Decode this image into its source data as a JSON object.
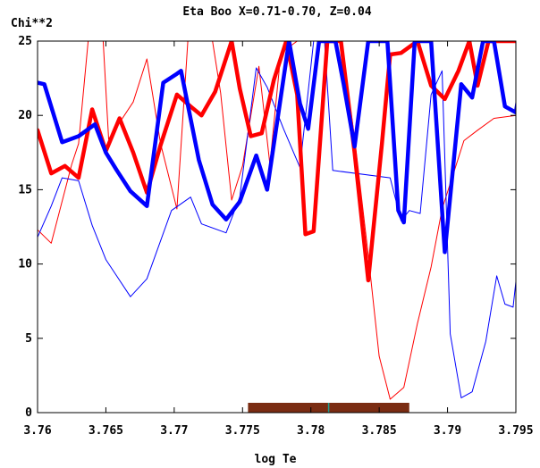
{
  "chart_data": {
    "type": "line",
    "title": "Eta Boo X=0.71-0.70, Z=0.04",
    "ylabel": "Chi**2",
    "xlabel": "log Te",
    "xlim": [
      3.76,
      3.795
    ],
    "ylim": [
      0,
      25
    ],
    "x_ticks": [
      "3.76",
      "3.765",
      "3.77",
      "3.775",
      "3.78",
      "3.785",
      "3.79",
      "3.795"
    ],
    "y_ticks": [
      "0",
      "5",
      "10",
      "15",
      "20",
      "25"
    ],
    "grid": false,
    "colors": {
      "red": "#ff0000",
      "blue": "#0000ff",
      "band": "#7a2c12",
      "marker": "#20a090"
    },
    "band": {
      "x_start": 3.7754,
      "x_end": 3.7872,
      "marker_x": 3.7813
    },
    "series": [
      {
        "color": "#ff0000",
        "width": "thick",
        "points": [
          [
            3.76,
            19.0
          ],
          [
            3.761,
            16.1
          ],
          [
            3.762,
            16.6
          ],
          [
            3.763,
            15.8
          ],
          [
            3.764,
            20.4
          ],
          [
            3.765,
            17.6
          ],
          [
            3.766,
            19.8
          ],
          [
            3.767,
            17.5
          ],
          [
            3.768,
            14.8
          ],
          [
            3.769,
            18.0
          ],
          [
            3.7702,
            21.4
          ],
          [
            3.7712,
            20.6
          ],
          [
            3.772,
            20.0
          ],
          [
            3.773,
            21.6
          ],
          [
            3.7742,
            25.0
          ],
          [
            3.7748,
            21.8
          ],
          [
            3.7756,
            18.6
          ],
          [
            3.7764,
            18.8
          ],
          [
            3.7773,
            22.4
          ],
          [
            3.7782,
            25.0
          ],
          [
            3.779,
            21.4
          ],
          [
            3.7796,
            12.0
          ],
          [
            3.7802,
            12.2
          ],
          [
            3.7812,
            25.0
          ],
          [
            3.7822,
            25.0
          ],
          [
            3.7832,
            17.5
          ],
          [
            3.7842,
            8.9
          ],
          [
            3.7852,
            18.1
          ],
          [
            3.7858,
            24.1
          ],
          [
            3.7866,
            24.2
          ],
          [
            3.7878,
            25.0
          ],
          [
            3.7888,
            22.0
          ],
          [
            3.7898,
            21.1
          ],
          [
            3.7908,
            23.0
          ],
          [
            3.7916,
            25.0
          ],
          [
            3.7922,
            22.0
          ],
          [
            3.793,
            25.0
          ],
          [
            3.795,
            25.0
          ]
        ]
      },
      {
        "color": "#0000ff",
        "width": "thick",
        "points": [
          [
            3.76,
            22.2
          ],
          [
            3.7605,
            22.1
          ],
          [
            3.7618,
            18.2
          ],
          [
            3.763,
            18.6
          ],
          [
            3.7642,
            19.4
          ],
          [
            3.765,
            17.5
          ],
          [
            3.7658,
            16.3
          ],
          [
            3.7668,
            14.9
          ],
          [
            3.768,
            13.9
          ],
          [
            3.7692,
            22.2
          ],
          [
            3.7702,
            22.8
          ],
          [
            3.7705,
            23.0
          ],
          [
            3.7718,
            17.0
          ],
          [
            3.7728,
            14.0
          ],
          [
            3.7738,
            13.0
          ],
          [
            3.7748,
            14.2
          ],
          [
            3.776,
            17.3
          ],
          [
            3.7768,
            15.0
          ],
          [
            3.7784,
            25.0
          ],
          [
            3.7792,
            20.8
          ],
          [
            3.7798,
            19.1
          ],
          [
            3.7806,
            25.0
          ],
          [
            3.7818,
            25.0
          ],
          [
            3.7824,
            22.1
          ],
          [
            3.7832,
            17.9
          ],
          [
            3.7842,
            25.0
          ],
          [
            3.7856,
            25.0
          ],
          [
            3.7864,
            13.6
          ],
          [
            3.7868,
            12.8
          ],
          [
            3.7876,
            25.0
          ],
          [
            3.7888,
            25.0
          ],
          [
            3.7898,
            10.8
          ],
          [
            3.791,
            22.1
          ],
          [
            3.7918,
            21.2
          ],
          [
            3.7926,
            25.0
          ],
          [
            3.7934,
            25.0
          ],
          [
            3.7942,
            20.6
          ],
          [
            3.795,
            20.2
          ],
          [
            3.7956,
            23.8
          ]
        ]
      },
      {
        "color": "#ff0000",
        "width": "thin",
        "points": [
          [
            3.76,
            12.3
          ],
          [
            3.761,
            11.4
          ],
          [
            3.7625,
            16.7
          ],
          [
            3.763,
            18.1
          ],
          [
            3.7637,
            25.0
          ],
          [
            3.7648,
            25.0
          ],
          [
            3.7652,
            18.4
          ],
          [
            3.767,
            20.9
          ],
          [
            3.768,
            23.8
          ],
          [
            3.769,
            18.1
          ],
          [
            3.7702,
            13.7
          ],
          [
            3.771,
            25.0
          ],
          [
            3.7728,
            25.0
          ],
          [
            3.7734,
            21.5
          ],
          [
            3.7742,
            14.3
          ],
          [
            3.775,
            16.6
          ],
          [
            3.7762,
            23.3
          ],
          [
            3.777,
            16.7
          ],
          [
            3.7778,
            24.2
          ],
          [
            3.779,
            25.0
          ],
          [
            3.7802,
            25.0
          ],
          [
            3.7812,
            25.0
          ],
          [
            3.7822,
            25.0
          ],
          [
            3.7832,
            18.5
          ],
          [
            3.7842,
            10.6
          ],
          [
            3.785,
            3.8
          ],
          [
            3.7858,
            0.9
          ],
          [
            3.7868,
            1.7
          ],
          [
            3.7878,
            6.0
          ],
          [
            3.7888,
            9.8
          ],
          [
            3.7896,
            13.7
          ],
          [
            3.7912,
            18.3
          ],
          [
            3.7922,
            19.0
          ],
          [
            3.7934,
            19.8
          ],
          [
            3.795,
            20.0
          ],
          [
            3.7958,
            25.0
          ]
        ]
      },
      {
        "color": "#0000ff",
        "width": "thin",
        "points": [
          [
            3.76,
            11.8
          ],
          [
            3.761,
            13.9
          ],
          [
            3.7618,
            15.8
          ],
          [
            3.763,
            15.6
          ],
          [
            3.764,
            12.6
          ],
          [
            3.765,
            10.3
          ],
          [
            3.7668,
            7.8
          ],
          [
            3.768,
            9.0
          ],
          [
            3.7698,
            13.6
          ],
          [
            3.7712,
            14.5
          ],
          [
            3.772,
            12.7
          ],
          [
            3.7738,
            12.1
          ],
          [
            3.7748,
            14.5
          ],
          [
            3.776,
            23.2
          ],
          [
            3.7768,
            21.9
          ],
          [
            3.778,
            19.1
          ],
          [
            3.7792,
            16.5
          ],
          [
            3.7802,
            25.0
          ],
          [
            3.781,
            25.0
          ],
          [
            3.7816,
            16.3
          ],
          [
            3.7858,
            15.8
          ],
          [
            3.7866,
            12.9
          ],
          [
            3.7872,
            13.6
          ],
          [
            3.788,
            13.4
          ],
          [
            3.7888,
            21.4
          ],
          [
            3.7896,
            23.0
          ],
          [
            3.7902,
            5.3
          ],
          [
            3.791,
            1.0
          ],
          [
            3.7918,
            1.4
          ],
          [
            3.7928,
            4.8
          ],
          [
            3.7936,
            9.2
          ],
          [
            3.7942,
            7.3
          ],
          [
            3.7948,
            7.1
          ],
          [
            3.7958,
            15.6
          ]
        ]
      }
    ]
  }
}
